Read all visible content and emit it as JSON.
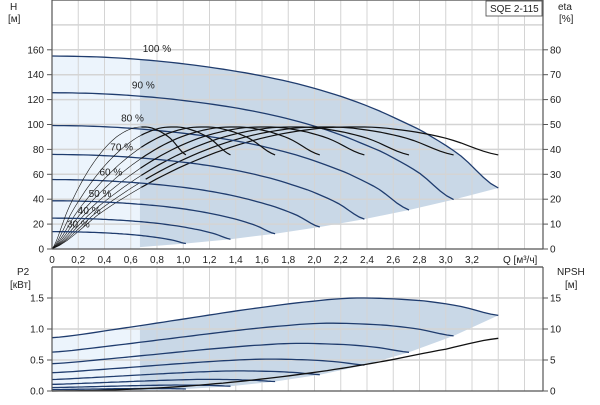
{
  "chart_data": [
    {
      "type": "line",
      "legend_box": "SQE 2-115",
      "xlabel": "Q [м³/ч]",
      "ylabel_left": [
        "H",
        "[м]"
      ],
      "ylabel_right": [
        "eta",
        "[%]"
      ],
      "xlim": [
        0,
        3.74
      ],
      "ylim_left": [
        0,
        200
      ],
      "ylim_right": [
        0,
        100
      ],
      "x_ticks": [
        "0",
        "0,2",
        "0,4",
        "0,6",
        "0,8",
        "1,0",
        "1,2",
        "1,4",
        "1,6",
        "1,8",
        "2,0",
        "2,2",
        "2,4",
        "2,6",
        "2,8",
        "3,0",
        "3,2"
      ],
      "y_ticks_left": [
        "0",
        "20",
        "40",
        "60",
        "80",
        "100",
        "120",
        "140",
        "160"
      ],
      "y_ticks_right": [
        "0",
        "10",
        "20",
        "30",
        "40",
        "50",
        "60",
        "70",
        "80"
      ],
      "grid": true,
      "speed_labels": [
        "100 %",
        "90 %",
        "80 %",
        "70 %",
        "60 %",
        "50 %",
        "40 %",
        "30 %"
      ],
      "speeds": [
        1.0,
        0.9,
        0.8,
        0.7,
        0.6,
        0.5,
        0.4,
        0.3
      ],
      "head_curve_100": {
        "q": [
          0,
          0.4,
          0.8,
          1.2,
          1.6,
          2.0,
          2.4,
          2.8,
          3.1,
          3.4
        ],
        "h": [
          155,
          154,
          151,
          146,
          139,
          129,
          115,
          96,
          76,
          49
        ]
      },
      "eta_curve_100": {
        "q": [
          0,
          0.4,
          0.8,
          1.2,
          1.6,
          2.0,
          2.3,
          2.6,
          3.0,
          3.4
        ],
        "eta": [
          0,
          15.6,
          28.2,
          37.8,
          44.5,
          48.2,
          49,
          48.2,
          44.5,
          37.8
        ]
      },
      "colors": {
        "head": "#1f3c6e",
        "eta": "#111111",
        "fill_dark": "#c9d8e7",
        "fill_light": "#ecf4fc",
        "grid": "#d4d4d4"
      }
    },
    {
      "type": "line",
      "ylabel_left": [
        "P2",
        "[кВт]"
      ],
      "ylabel_right": [
        "NPSH",
        "[м]"
      ],
      "ylim_left": [
        0,
        2.0
      ],
      "ylim_right": [
        0,
        20
      ],
      "y_ticks_left": [
        "0.0",
        "0.5",
        "1.0",
        "1.5"
      ],
      "y_ticks_right": [
        "0",
        "5",
        "10",
        "15"
      ],
      "power_curve_100": {
        "q": [
          0,
          0.5,
          1.0,
          1.5,
          2.0,
          2.34,
          2.8,
          3.1,
          3.4
        ],
        "p2": [
          0.86,
          1.0,
          1.16,
          1.32,
          1.45,
          1.5,
          1.46,
          1.37,
          1.22
        ]
      },
      "npsh_curve": {
        "q": [
          0,
          0.5,
          1.0,
          1.5,
          2.0,
          2.5,
          3.0,
          3.4
        ],
        "npsh": [
          0,
          0.2,
          0.75,
          1.7,
          3.0,
          4.7,
          6.75,
          8.5
        ]
      },
      "colors": {
        "power": "#1f3c6e",
        "npsh": "#111111"
      }
    }
  ]
}
